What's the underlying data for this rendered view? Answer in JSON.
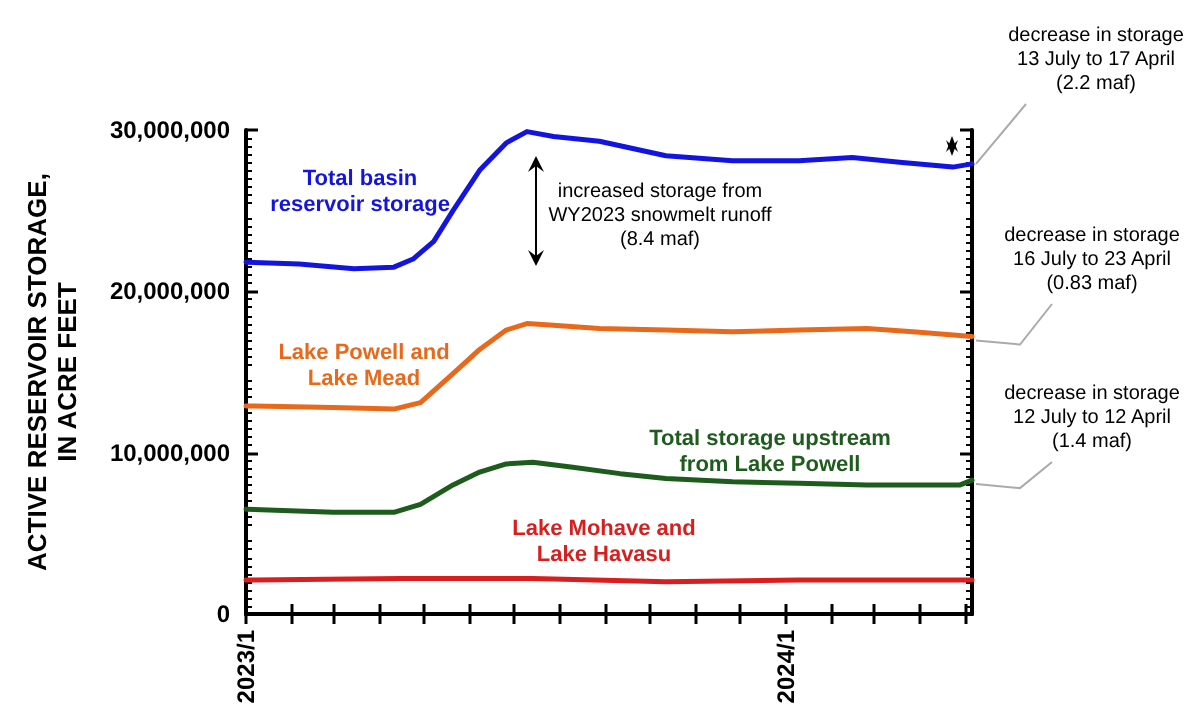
{
  "chart_data": {
    "type": "line",
    "ylabel": "ACTIVE RESERVOIR STORAGE,\nIN ACRE FEET",
    "xlim": [
      "2023-01-01",
      "2024-05-06"
    ],
    "xticks": [
      {
        "value": "2023-01-01",
        "label": "2023/1"
      },
      {
        "value": "2023-02-01",
        "label": null
      },
      {
        "value": "2023-03-01",
        "label": null
      },
      {
        "value": "2023-04-01",
        "label": null
      },
      {
        "value": "2023-05-01",
        "label": null
      },
      {
        "value": "2023-06-01",
        "label": null
      },
      {
        "value": "2023-07-01",
        "label": null
      },
      {
        "value": "2023-08-01",
        "label": null
      },
      {
        "value": "2023-09-01",
        "label": null
      },
      {
        "value": "2023-10-01",
        "label": null
      },
      {
        "value": "2023-11-01",
        "label": null
      },
      {
        "value": "2023-12-01",
        "label": null
      },
      {
        "value": "2024-01-01",
        "label": "2024/1"
      },
      {
        "value": "2024-02-01",
        "label": null
      },
      {
        "value": "2024-03-01",
        "label": null
      },
      {
        "value": "2024-04-01",
        "label": null
      },
      {
        "value": "2024-05-01",
        "label": null
      }
    ],
    "ylim": [
      0,
      30000000
    ],
    "yticks": [
      {
        "value": 0,
        "label": "0"
      },
      {
        "value": 10000000,
        "label": "10,000,000"
      },
      {
        "value": 20000000,
        "label": "20,000,000"
      },
      {
        "value": 30000000,
        "label": "30,000,000"
      }
    ],
    "grid": false,
    "marker": "none",
    "line_style": "solid",
    "series": [
      {
        "name": "Total basin\nreservoir storage",
        "color": "#1414e0",
        "x": [
          "2023-01-01",
          "2023-02-06",
          "2023-03-15",
          "2023-04-11",
          "2023-04-24",
          "2023-05-08",
          "2023-05-21",
          "2023-06-08",
          "2023-06-26",
          "2023-07-10",
          "2023-07-28",
          "2023-08-28",
          "2023-10-12",
          "2023-11-26",
          "2024-01-10",
          "2024-02-15",
          "2024-03-18",
          "2024-04-23",
          "2024-05-06"
        ],
        "values": [
          21800000,
          21700000,
          21400000,
          21500000,
          22000000,
          23100000,
          25000000,
          27500000,
          29200000,
          29900000,
          29600000,
          29300000,
          28400000,
          28100000,
          28100000,
          28300000,
          28000000,
          27700000,
          27900000
        ]
      },
      {
        "name": "Lake Powell and\nLake Mead",
        "color": "#e8691c",
        "x": [
          "2023-01-01",
          "2023-03-01",
          "2023-04-11",
          "2023-04-29",
          "2023-05-21",
          "2023-06-08",
          "2023-06-26",
          "2023-07-10",
          "2023-07-28",
          "2023-08-28",
          "2023-10-12",
          "2023-11-26",
          "2024-01-10",
          "2024-02-25",
          "2024-03-27",
          "2024-05-06"
        ],
        "values": [
          12900000,
          12800000,
          12700000,
          13100000,
          14900000,
          16400000,
          17600000,
          18000000,
          17900000,
          17700000,
          17600000,
          17500000,
          17600000,
          17700000,
          17500000,
          17200000
        ]
      },
      {
        "name": "Total storage upstream\nfrom Lake Powell",
        "color": "#1e5c1e",
        "x": [
          "2023-01-01",
          "2023-03-01",
          "2023-04-11",
          "2023-04-29",
          "2023-05-21",
          "2023-06-08",
          "2023-06-26",
          "2023-07-14",
          "2023-08-10",
          "2023-09-11",
          "2023-10-12",
          "2023-11-26",
          "2024-01-10",
          "2024-02-25",
          "2024-04-10",
          "2024-04-28",
          "2024-05-06"
        ],
        "values": [
          6500000,
          6300000,
          6300000,
          6800000,
          8000000,
          8800000,
          9300000,
          9400000,
          9100000,
          8700000,
          8400000,
          8200000,
          8100000,
          8000000,
          8000000,
          8000000,
          8300000
        ]
      },
      {
        "name": "Lake Mohave and\nLake Havasu",
        "color": "#d81e1e",
        "x": [
          "2023-01-01",
          "2023-04-15",
          "2023-07-14",
          "2023-10-12",
          "2024-01-10",
          "2024-05-06"
        ],
        "values": [
          2100000,
          2200000,
          2200000,
          2000000,
          2100000,
          2100000
        ]
      }
    ],
    "annotations": [
      "increased storage from\nWY2023 snowmelt runoff\n(8.4 maf)",
      {
        "text": "decrease in storage\n13 July to 17 April\n(2.2 maf)",
        "x": "2024-05-06",
        "y": 27900000
      },
      {
        "text": "decrease in storage\n16 July to 23 April\n(0.83 maf)",
        "x": "2024-05-06",
        "y": 17200000
      },
      {
        "text": "decrease in storage\n12 July to 12 April\n(1.4 maf)",
        "x": "2024-05-06",
        "y": 8300000
      }
    ]
  }
}
